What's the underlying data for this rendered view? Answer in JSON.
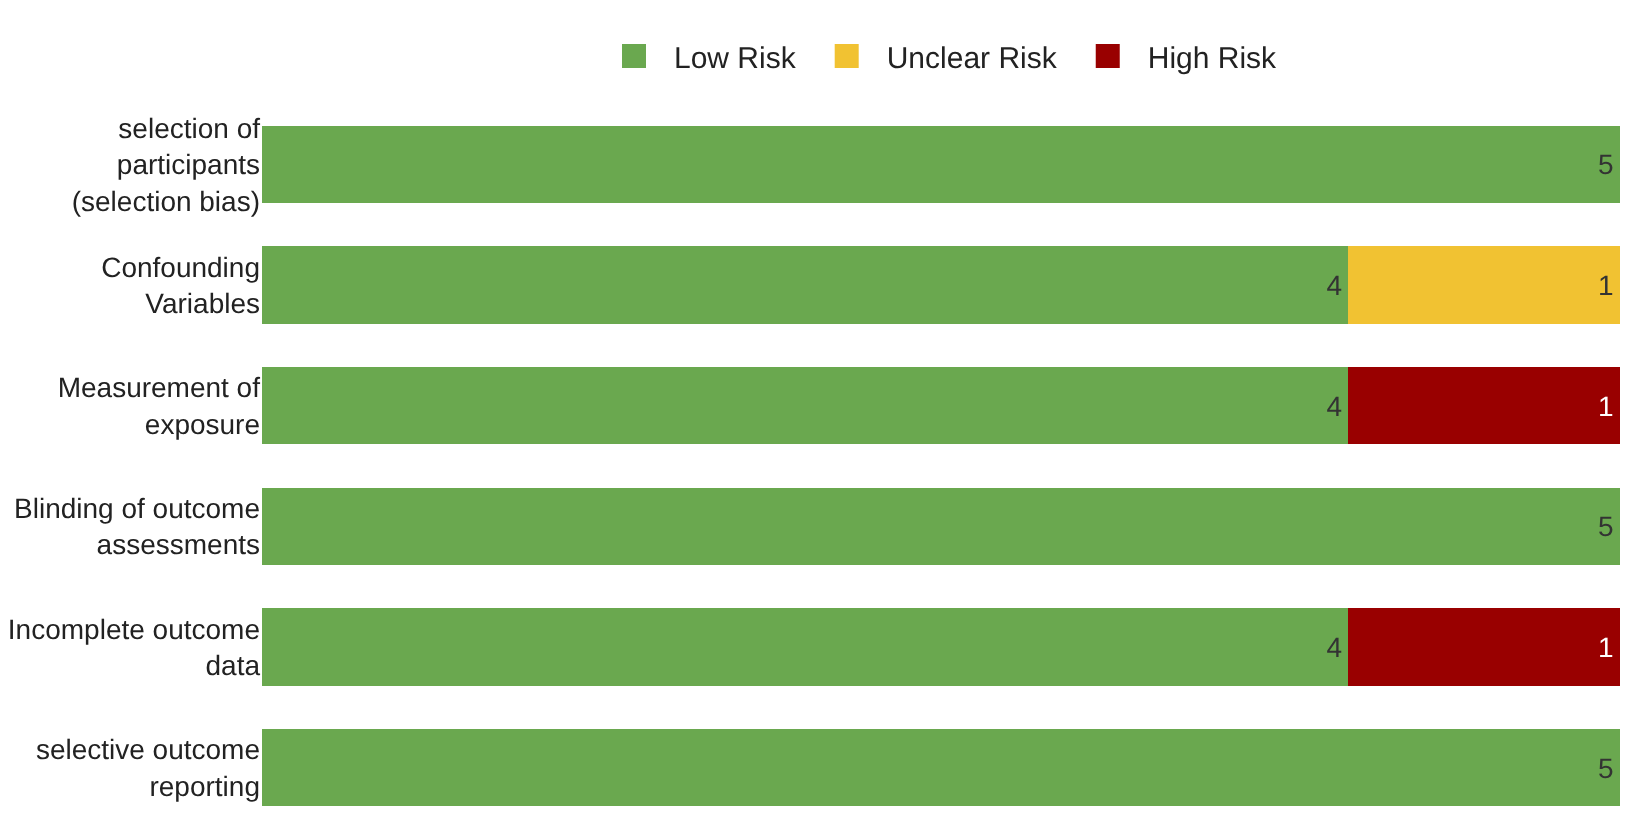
{
  "chart_data": {
    "type": "bar",
    "orientation": "horizontal",
    "stacked": true,
    "data_labels": true,
    "legend": "top",
    "categories": [
      "selection of\nparticipants\n(selection bias)",
      "Confounding\nVariables",
      "Measurement of\nexposure",
      "Blinding of outcome\nassessments",
      "Incomplete outcome\ndata",
      "selective outcome\nreporting"
    ],
    "series": [
      {
        "name": "Low Risk",
        "color": "#6aa84f",
        "values": [
          5,
          4,
          4,
          5,
          4,
          5
        ]
      },
      {
        "name": "Unclear Risk",
        "color": "#f1c232",
        "values": [
          null,
          1,
          null,
          null,
          null,
          null
        ]
      },
      {
        "name": "High Risk",
        "color": "#990000",
        "values": [
          null,
          null,
          1,
          null,
          1,
          null
        ]
      }
    ]
  }
}
